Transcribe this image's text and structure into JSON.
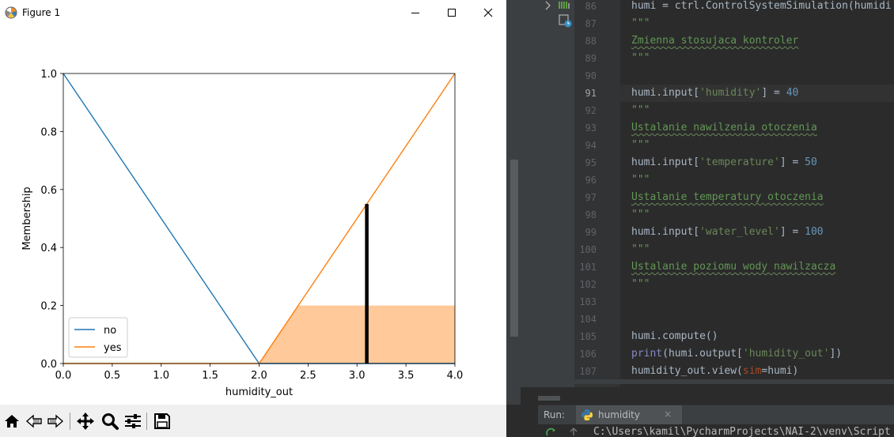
{
  "figure_window": {
    "title": "Figure 1",
    "icons": {
      "app": "matplotlib-icon",
      "minimize": "minimize-icon",
      "maximize": "maximize-icon",
      "close": "close-icon"
    }
  },
  "chart_data": {
    "type": "line",
    "title": "",
    "xlabel": "humidity_out",
    "ylabel": "Membership",
    "xlim": [
      0.0,
      4.0
    ],
    "ylim": [
      0.0,
      1.0
    ],
    "xticks": [
      "0.0",
      "0.5",
      "1.0",
      "1.5",
      "2.0",
      "2.5",
      "3.0",
      "3.5",
      "4.0"
    ],
    "yticks": [
      "0.0",
      "0.2",
      "0.4",
      "0.6",
      "0.8",
      "1.0"
    ],
    "grid": false,
    "legend_position": "lower-left",
    "series": [
      {
        "name": "no",
        "color": "#1f77b4",
        "x": [
          0.0,
          2.0,
          4.0
        ],
        "y": [
          1.0,
          0.0,
          0.0
        ]
      },
      {
        "name": "yes",
        "color": "#ff7f0e",
        "x": [
          0.0,
          2.0,
          4.0
        ],
        "y": [
          0.0,
          0.0,
          1.0
        ]
      }
    ],
    "activation_fill": {
      "color": "#ffc999",
      "x": [
        2.0,
        2.4,
        4.0
      ],
      "y": [
        0.0,
        0.2,
        0.2
      ]
    },
    "output_marker": {
      "x": 3.1,
      "y": 0.55,
      "color": "#000000"
    }
  },
  "toolbar": {
    "icons": [
      "home-icon",
      "back-icon",
      "forward-icon",
      "pan-icon",
      "zoom-icon",
      "configure-subplots-icon",
      "save-icon"
    ]
  },
  "editor": {
    "lines": [
      {
        "n": "86",
        "parts": [
          [
            "id",
            "humi = ctrl.ControlSystemSimulation(humidi"
          ]
        ]
      },
      {
        "n": "87",
        "parts": [
          [
            "doc",
            "\"\"\""
          ]
        ]
      },
      {
        "n": "88",
        "parts": [
          [
            "docu",
            "Zmienna stosujaca kontroler"
          ]
        ]
      },
      {
        "n": "89",
        "parts": [
          [
            "doc",
            "\"\"\""
          ]
        ]
      },
      {
        "n": "90",
        "parts": []
      },
      {
        "n": "91",
        "parts": [
          [
            "id",
            "humi.input["
          ],
          [
            "str",
            "'humidity'"
          ],
          [
            "id",
            "] = "
          ],
          [
            "num",
            "40"
          ]
        ],
        "current": true
      },
      {
        "n": "92",
        "parts": [
          [
            "doc",
            "\"\"\""
          ]
        ]
      },
      {
        "n": "93",
        "parts": [
          [
            "docu",
            "Ustalanie nawilzenia otoczenia"
          ]
        ]
      },
      {
        "n": "94",
        "parts": [
          [
            "doc",
            "\"\"\""
          ]
        ]
      },
      {
        "n": "95",
        "parts": [
          [
            "id",
            "humi.input["
          ],
          [
            "str",
            "'temperature'"
          ],
          [
            "id",
            "] = "
          ],
          [
            "num",
            "50"
          ]
        ]
      },
      {
        "n": "96",
        "parts": [
          [
            "doc",
            "\"\"\""
          ]
        ]
      },
      {
        "n": "97",
        "parts": [
          [
            "docu",
            "Ustalanie temperatury otoczenia"
          ]
        ]
      },
      {
        "n": "98",
        "parts": [
          [
            "doc",
            "\"\"\""
          ]
        ]
      },
      {
        "n": "99",
        "parts": [
          [
            "id",
            "humi.input["
          ],
          [
            "str",
            "'water_level'"
          ],
          [
            "id",
            "] = "
          ],
          [
            "num",
            "100"
          ]
        ]
      },
      {
        "n": "100",
        "parts": [
          [
            "doc",
            "\"\"\""
          ]
        ]
      },
      {
        "n": "101",
        "parts": [
          [
            "docu",
            "Ustalanie poziomu wody nawilzacza"
          ]
        ]
      },
      {
        "n": "102",
        "parts": [
          [
            "doc",
            "\"\"\""
          ]
        ]
      },
      {
        "n": "103",
        "parts": []
      },
      {
        "n": "104",
        "parts": []
      },
      {
        "n": "105",
        "parts": [
          [
            "id",
            "humi.compute()"
          ]
        ]
      },
      {
        "n": "106",
        "parts": [
          [
            "bi",
            "print"
          ],
          [
            "id",
            "(humi.output["
          ],
          [
            "str",
            "'humidity_out'"
          ],
          [
            "id",
            "])"
          ]
        ]
      },
      {
        "n": "107",
        "parts": [
          [
            "id",
            "humidity_out.view("
          ],
          [
            "prm",
            "sim"
          ],
          [
            "id",
            "=humi)"
          ]
        ]
      }
    ]
  },
  "run_panel": {
    "label": "Run:",
    "tab_label": "humidity",
    "close_glyph": "×",
    "console_line": "C:\\Users\\kamil\\PycharmProjects\\NAI-2\\venv\\Script"
  }
}
